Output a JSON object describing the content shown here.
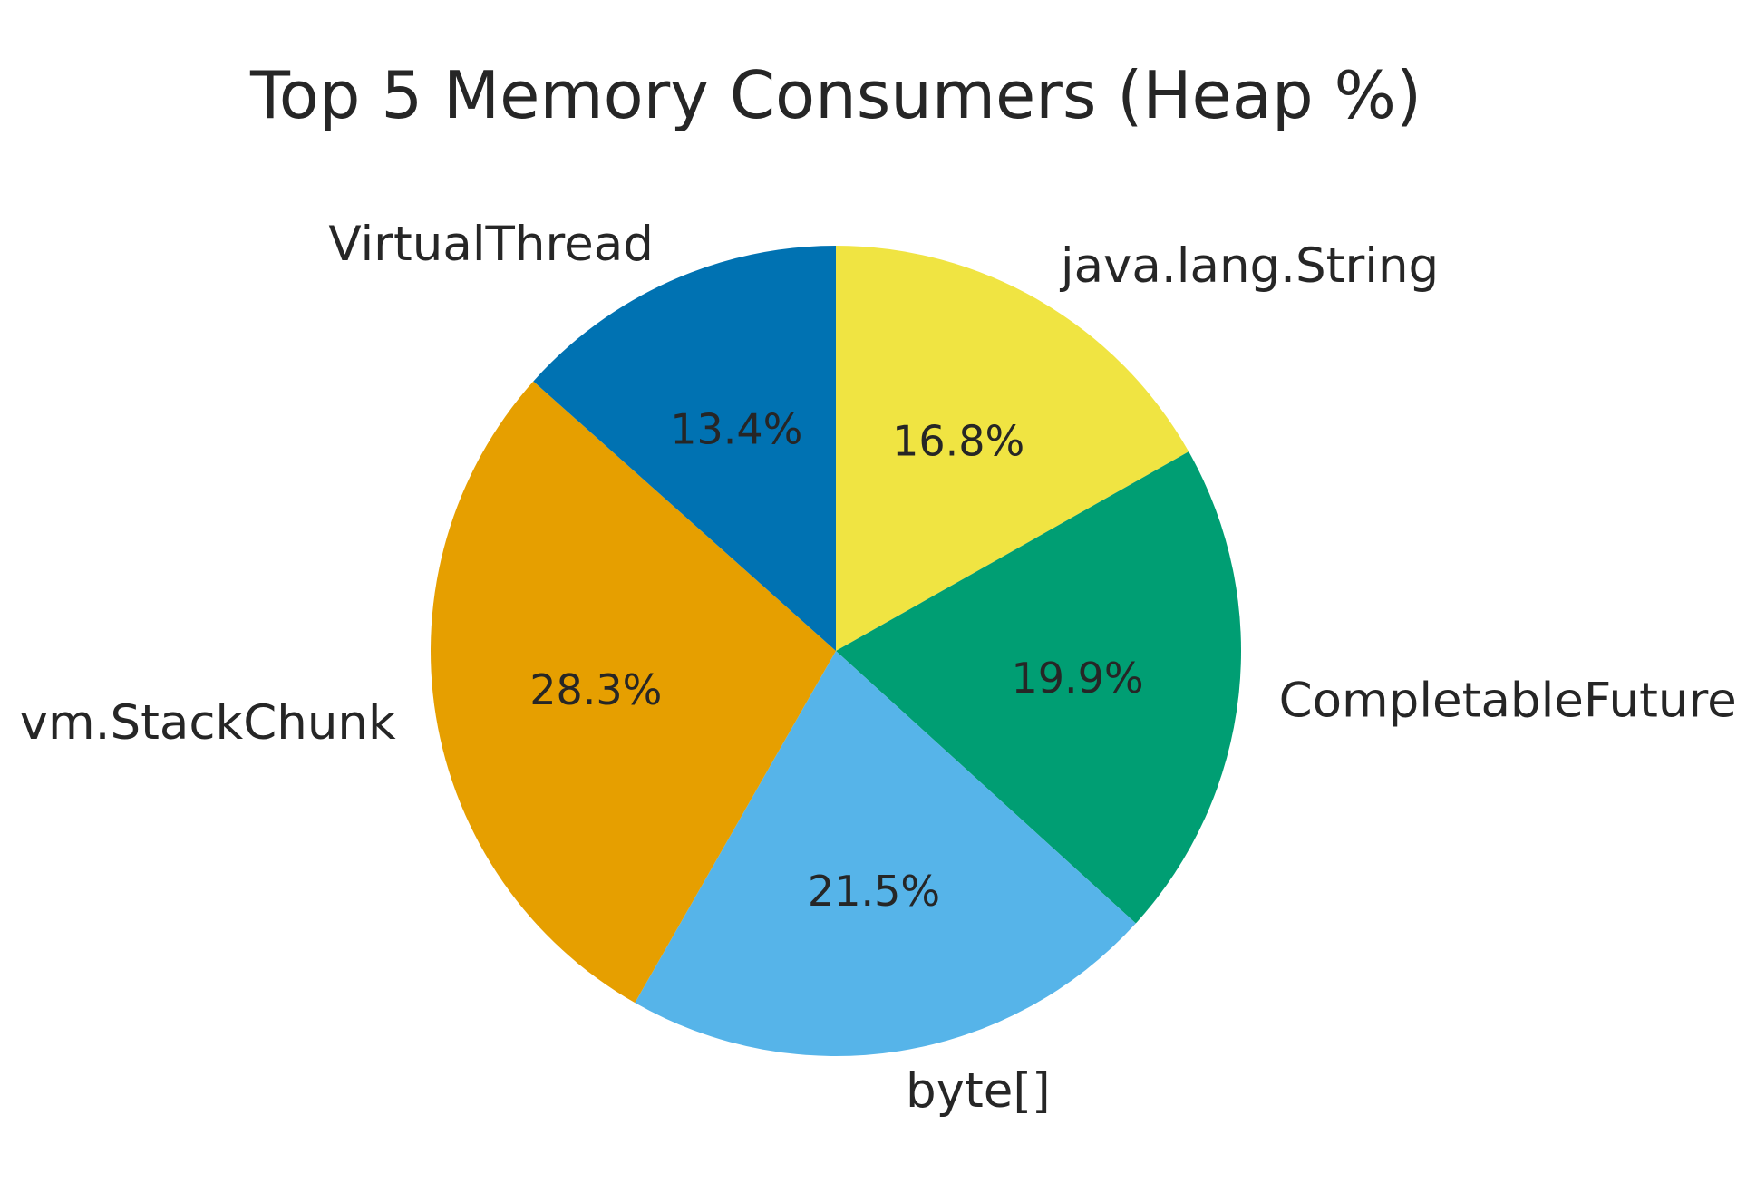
{
  "chart_data": {
    "type": "pie",
    "title": "Top 5 Memory Consumers (Heap %)",
    "slices": [
      {
        "label": "java.lang.String",
        "value": 16.8,
        "pct_label": "16.8%",
        "color": "#F0E442"
      },
      {
        "label": "CompletableFuture",
        "value": 19.9,
        "pct_label": "19.9%",
        "color": "#009E73"
      },
      {
        "label": "byte[]",
        "value": 21.5,
        "pct_label": "21.5%",
        "color": "#56B4E9"
      },
      {
        "label": "vm.StackChunk",
        "value": 28.3,
        "pct_label": "28.3%",
        "color": "#E69F00"
      },
      {
        "label": "VirtualThread",
        "value": 13.4,
        "pct_label": "13.4%",
        "color": "#0072B2"
      }
    ],
    "start_angle_deg": 90,
    "direction": "clockwise",
    "legend": "none"
  }
}
